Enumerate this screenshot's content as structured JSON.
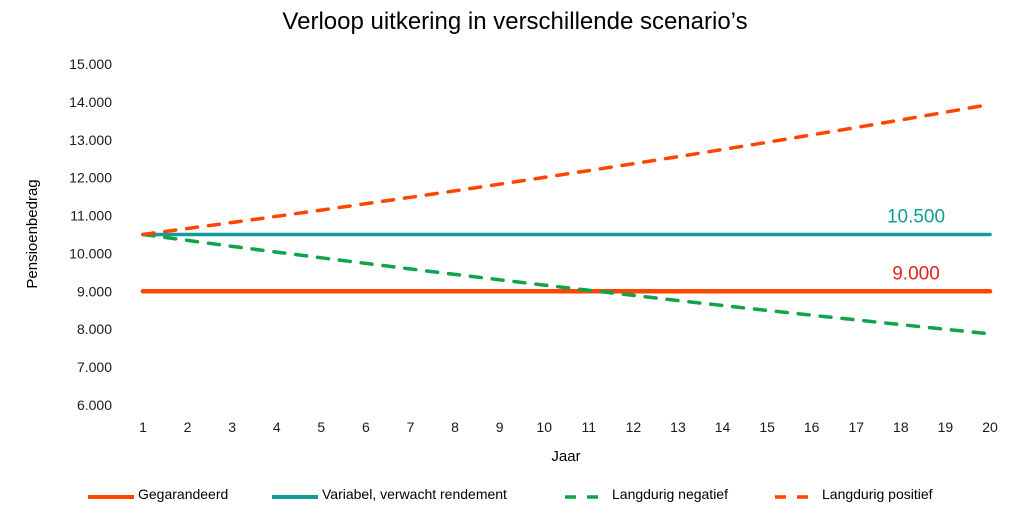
{
  "chart_data": {
    "type": "line",
    "title": "Verloop uitkering in verschillende scenario’s",
    "xlabel": "Jaar",
    "ylabel": "Pensioenbedrag",
    "x": [
      1,
      2,
      3,
      4,
      5,
      6,
      7,
      8,
      9,
      10,
      11,
      12,
      13,
      14,
      15,
      16,
      17,
      18,
      19,
      20
    ],
    "ylim": [
      6000,
      15000
    ],
    "yticks": [
      "6.000",
      "7.000",
      "8.000",
      "9.000",
      "10.000",
      "11.000",
      "12.000",
      "13.000",
      "14.000",
      "15.000"
    ],
    "grid": false,
    "legend_position": "bottom",
    "series": [
      {
        "name": "Gegarandeerd",
        "color": "#FF4500",
        "style": "solid",
        "values": [
          9000,
          9000,
          9000,
          9000,
          9000,
          9000,
          9000,
          9000,
          9000,
          9000,
          9000,
          9000,
          9000,
          9000,
          9000,
          9000,
          9000,
          9000,
          9000,
          9000
        ]
      },
      {
        "name": "Variabel, verwacht rendement",
        "color": "#139A9A",
        "style": "solid",
        "values": [
          10500,
          10500,
          10500,
          10500,
          10500,
          10500,
          10500,
          10500,
          10500,
          10500,
          10500,
          10500,
          10500,
          10500,
          10500,
          10500,
          10500,
          10500,
          10500,
          10500
        ]
      },
      {
        "name": "Langdurig negatief",
        "color": "#0FA34A",
        "style": "dashed",
        "values": [
          10500,
          10343,
          10187,
          10035,
          9884,
          9736,
          9590,
          9446,
          9304,
          9165,
          9027,
          8892,
          8758,
          8627,
          8498,
          8370,
          8245,
          8121,
          7999,
          7879
        ]
      },
      {
        "name": "Langdurig positief",
        "color": "#FF4500",
        "style": "dashed",
        "values": [
          10500,
          10658,
          10817,
          10980,
          11144,
          11312,
          11481,
          11654,
          11828,
          12006,
          12186,
          12369,
          12554,
          12743,
          12934,
          13128,
          13325,
          13525,
          13727,
          13933
        ]
      }
    ],
    "annotations": [
      {
        "text": "10.500",
        "color": "#139A9A",
        "x": 18.5,
        "y": 10500
      },
      {
        "text": "9.000",
        "color": "#E8201A",
        "x": 18.5,
        "y": 9000
      }
    ]
  }
}
